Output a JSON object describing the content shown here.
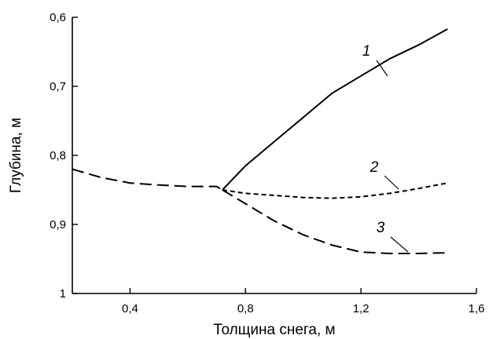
{
  "chart_data": {
    "type": "line",
    "title": "",
    "xlabel": "Толщина снега, м",
    "ylabel": "Глубина, м",
    "xlim": [
      0.2,
      1.6
    ],
    "ylim": [
      0.6,
      1.0
    ],
    "y_inverted": true,
    "grid": false,
    "x_ticks": [
      {
        "value": 0.4,
        "label": "0,4"
      },
      {
        "value": 0.8,
        "label": "0,8"
      },
      {
        "value": 1.2,
        "label": "1,2"
      },
      {
        "value": 1.6,
        "label": "1,6"
      }
    ],
    "y_ticks": [
      {
        "value": 0.6,
        "label": "0,6"
      },
      {
        "value": 0.7,
        "label": "0,7"
      },
      {
        "value": 0.8,
        "label": "0,8"
      },
      {
        "value": 0.9,
        "label": "0,9"
      },
      {
        "value": 1.0,
        "label": "1"
      }
    ],
    "common_segment": {
      "style": "long-dash",
      "x": [
        0.2,
        0.3,
        0.4,
        0.5,
        0.6,
        0.7,
        0.72
      ],
      "y": [
        0.82,
        0.832,
        0.84,
        0.843,
        0.845,
        0.845,
        0.85
      ]
    },
    "series": [
      {
        "label": "1",
        "style": "solid",
        "x": [
          0.72,
          0.8,
          0.9,
          1.0,
          1.1,
          1.2,
          1.3,
          1.4,
          1.5
        ],
        "y": [
          0.85,
          0.815,
          0.78,
          0.745,
          0.71,
          0.685,
          0.66,
          0.64,
          0.617
        ]
      },
      {
        "label": "2",
        "style": "short-dash",
        "x": [
          0.72,
          0.8,
          0.9,
          1.0,
          1.1,
          1.2,
          1.3,
          1.4,
          1.5
        ],
        "y": [
          0.85,
          0.855,
          0.858,
          0.861,
          0.862,
          0.86,
          0.855,
          0.848,
          0.84
        ]
      },
      {
        "label": "3",
        "style": "long-dash",
        "x": [
          0.72,
          0.8,
          0.9,
          1.0,
          1.1,
          1.2,
          1.3,
          1.4,
          1.5
        ],
        "y": [
          0.85,
          0.87,
          0.895,
          0.915,
          0.93,
          0.94,
          0.942,
          0.942,
          0.941
        ]
      }
    ]
  }
}
